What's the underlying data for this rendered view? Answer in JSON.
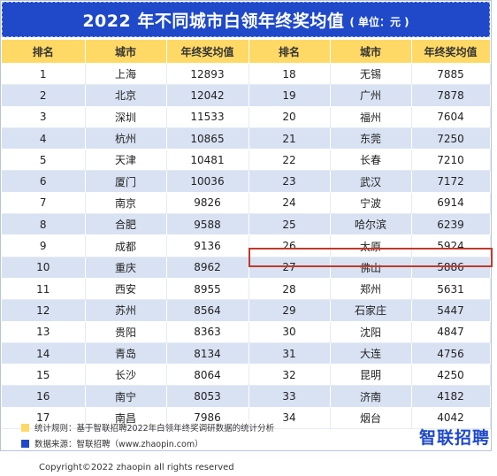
{
  "title": {
    "main": "2022 年不同城市白领年终奖均值",
    "unit": "( 单位：元 )"
  },
  "headers": [
    "排名",
    "城市",
    "年终奖均值",
    "排名",
    "城市",
    "年终奖均值"
  ],
  "rows": [
    {
      "r1": "1",
      "c1": "上海",
      "v1": "12893",
      "r2": "18",
      "c2": "无锡",
      "v2": "7885"
    },
    {
      "r1": "2",
      "c1": "北京",
      "v1": "12042",
      "r2": "19",
      "c2": "广州",
      "v2": "7878"
    },
    {
      "r1": "3",
      "c1": "深圳",
      "v1": "11533",
      "r2": "20",
      "c2": "福州",
      "v2": "7604"
    },
    {
      "r1": "4",
      "c1": "杭州",
      "v1": "10865",
      "r2": "21",
      "c2": "东莞",
      "v2": "7250"
    },
    {
      "r1": "5",
      "c1": "天津",
      "v1": "10481",
      "r2": "22",
      "c2": "长春",
      "v2": "7210"
    },
    {
      "r1": "6",
      "c1": "厦门",
      "v1": "10036",
      "r2": "23",
      "c2": "武汉",
      "v2": "7172"
    },
    {
      "r1": "7",
      "c1": "南京",
      "v1": "9826",
      "r2": "24",
      "c2": "宁波",
      "v2": "6914"
    },
    {
      "r1": "8",
      "c1": "合肥",
      "v1": "9588",
      "r2": "25",
      "c2": "哈尔滨",
      "v2": "6239"
    },
    {
      "r1": "9",
      "c1": "成都",
      "v1": "9136",
      "r2": "26",
      "c2": "太原",
      "v2": "5924"
    },
    {
      "r1": "10",
      "c1": "重庆",
      "v1": "8962",
      "r2": "27",
      "c2": "佛山",
      "v2": "5886"
    },
    {
      "r1": "11",
      "c1": "西安",
      "v1": "8955",
      "r2": "28",
      "c2": "郑州",
      "v2": "5631"
    },
    {
      "r1": "12",
      "c1": "苏州",
      "v1": "8564",
      "r2": "29",
      "c2": "石家庄",
      "v2": "5447"
    },
    {
      "r1": "13",
      "c1": "贵阳",
      "v1": "8363",
      "r2": "30",
      "c2": "沈阳",
      "v2": "4847"
    },
    {
      "r1": "14",
      "c1": "青岛",
      "v1": "8134",
      "r2": "31",
      "c2": "大连",
      "v2": "4756"
    },
    {
      "r1": "15",
      "c1": "长沙",
      "v1": "8064",
      "r2": "32",
      "c2": "昆明",
      "v2": "4250"
    },
    {
      "r1": "16",
      "c1": "南宁",
      "v1": "8053",
      "r2": "33",
      "c2": "济南",
      "v2": "4182"
    },
    {
      "r1": "17",
      "c1": "南昌",
      "v1": "7986",
      "r2": "34",
      "c2": "烟台",
      "v2": "4042"
    }
  ],
  "legend": [
    {
      "color": "#ffd966",
      "label": "统计规则：基于智联招聘2022年白领年终奖调研数据的统计分析"
    },
    {
      "color": "#1f49c9",
      "label": "数据来源：智联招聘（www.zhaopin.com）"
    }
  ],
  "logo": "智联招聘",
  "copyright": "Copyright©2022 zhaopin all rights reserved",
  "colors": {
    "brand": "#1f49c9",
    "header": "#ffd966",
    "stripe": "#d9e2f3",
    "highlight": "#c0392b"
  }
}
